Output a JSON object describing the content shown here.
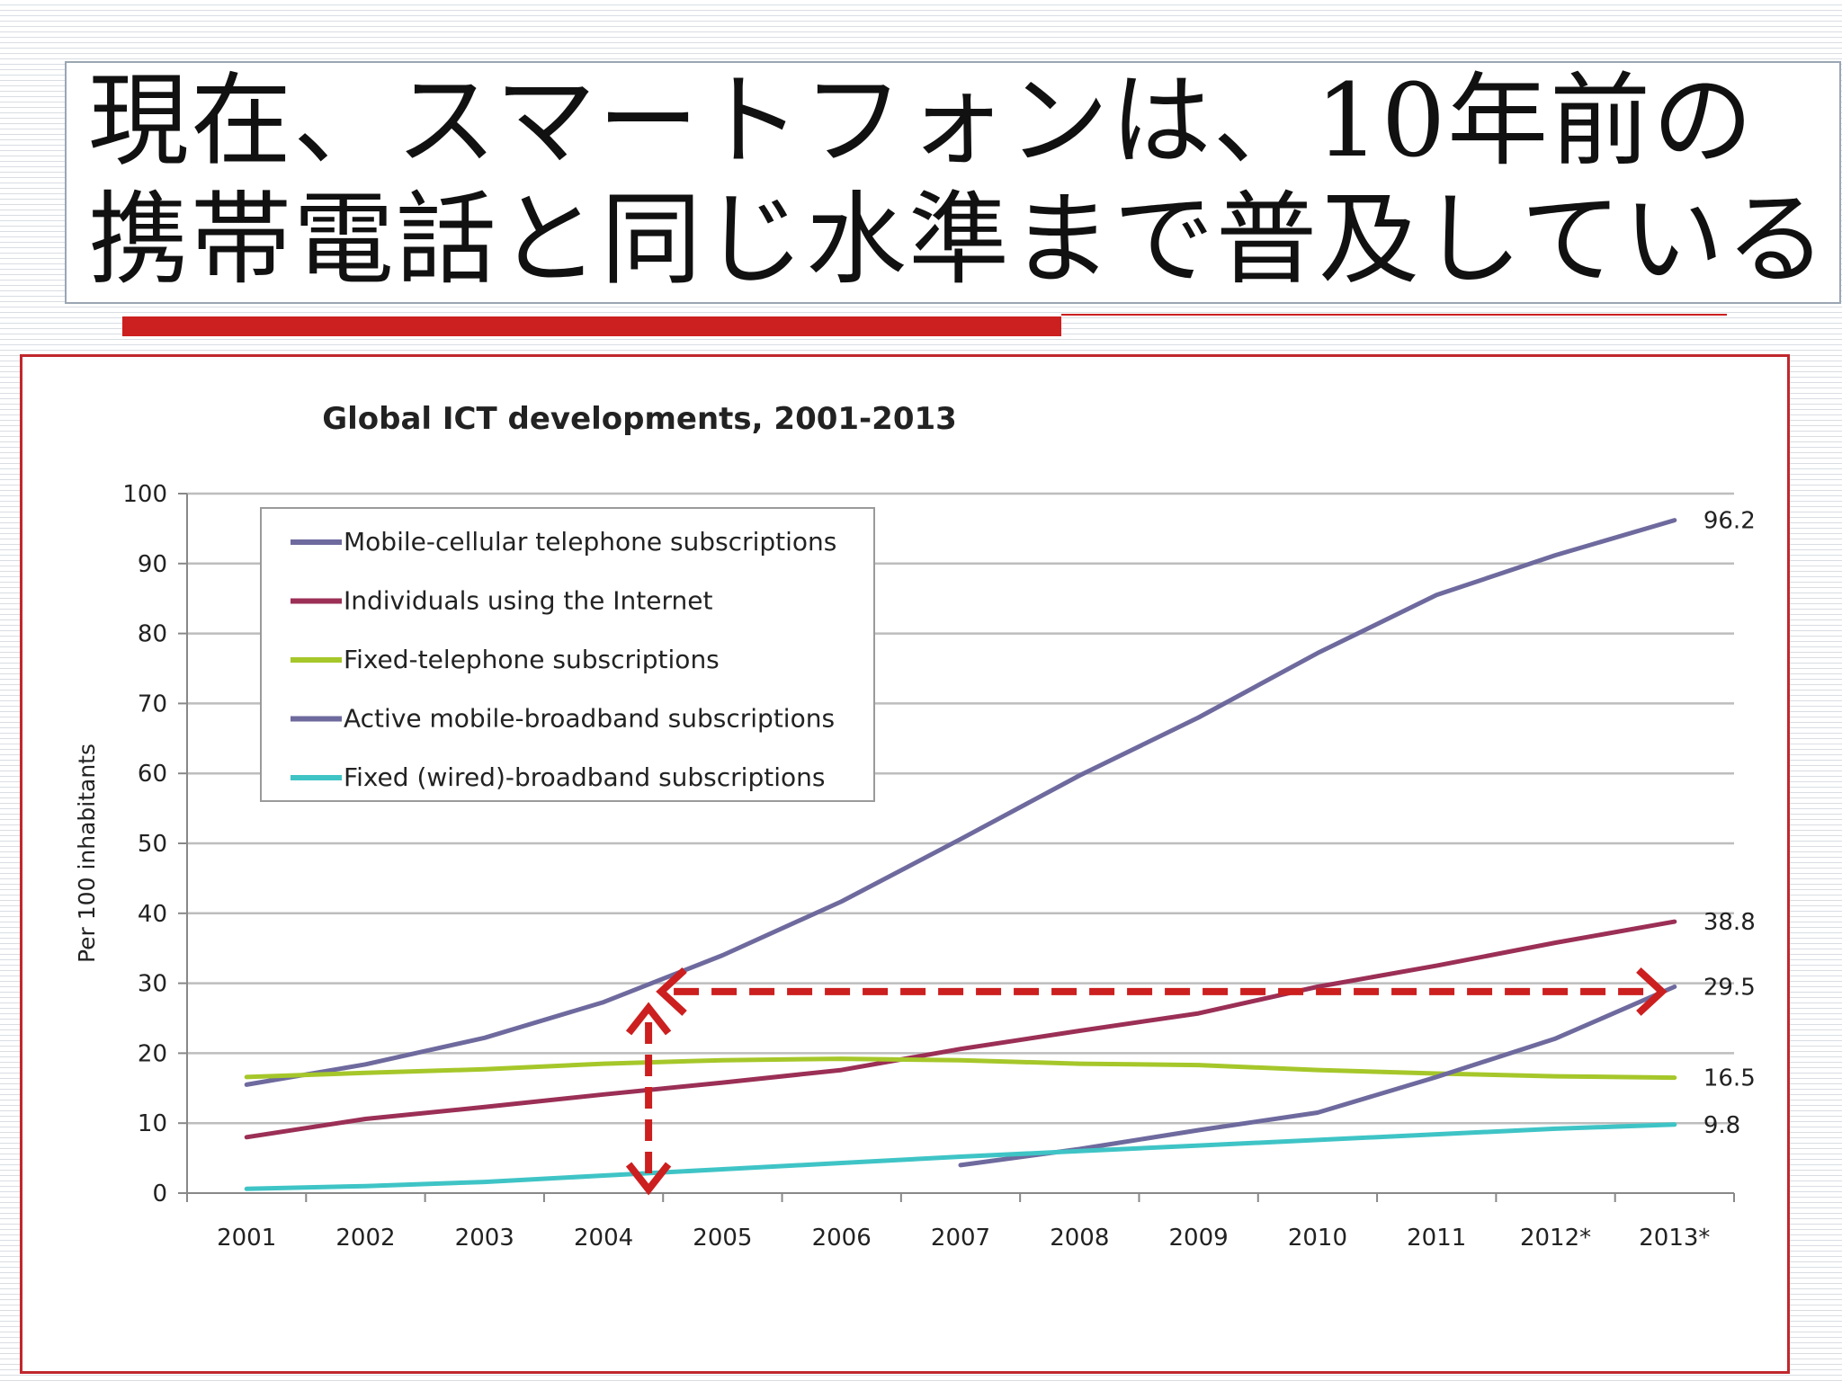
{
  "slide": {
    "title_line_1": "現在、スマートフォンは、10年前の",
    "title_line_2": "携帯電話と同じ水準まで普及している",
    "accent_color": "#cc1f1f"
  },
  "chart_data": {
    "type": "line",
    "title": "Global ICT developments, 2001-2013",
    "xlabel": "",
    "ylabel": "Per 100 inhabitants",
    "categories": [
      "2001",
      "2002",
      "2003",
      "2004",
      "2005",
      "2006",
      "2007",
      "2008",
      "2009",
      "2010",
      "2011",
      "2012*",
      "2013*"
    ],
    "ylim": [
      0,
      100
    ],
    "yticks": [
      0,
      10,
      20,
      30,
      40,
      50,
      60,
      70,
      80,
      90,
      100
    ],
    "grid": true,
    "legend_position": "top-left",
    "series": [
      {
        "name": "Mobile-cellular telephone subscriptions",
        "color": "#6e6a9e",
        "end_label": "96.2",
        "values": [
          15.5,
          18.4,
          22.2,
          27.3,
          34.0,
          41.7,
          50.6,
          59.7,
          68.0,
          77.2,
          85.5,
          91.2,
          96.2
        ]
      },
      {
        "name": "Individuals using the Internet",
        "color": "#9b2f55",
        "end_label": "38.8",
        "values": [
          8.0,
          10.6,
          12.3,
          14.1,
          15.8,
          17.6,
          20.6,
          23.2,
          25.7,
          29.5,
          32.5,
          35.8,
          38.8
        ]
      },
      {
        "name": "Fixed-telephone subscriptions",
        "color": "#a6c72a",
        "end_label": "16.5",
        "values": [
          16.6,
          17.2,
          17.7,
          18.5,
          19.0,
          19.2,
          19.0,
          18.5,
          18.3,
          17.6,
          17.1,
          16.7,
          16.5
        ]
      },
      {
        "name": "Active mobile-broadband subscriptions",
        "color": "#6e6a9e",
        "end_label": "29.5",
        "values": [
          null,
          null,
          null,
          null,
          null,
          null,
          4.0,
          6.3,
          9.0,
          11.5,
          16.6,
          22.1,
          29.5
        ]
      },
      {
        "name": "Fixed (wired)-broadband subscriptions",
        "color": "#3fc4c6",
        "end_label": "9.8",
        "values": [
          0.6,
          1.0,
          1.6,
          2.5,
          3.4,
          4.3,
          5.2,
          6.0,
          6.8,
          7.6,
          8.4,
          9.2,
          9.8
        ]
      }
    ],
    "annotations": {
      "color": "#cc1f1f",
      "vertical_arrow": {
        "x": "2004",
        "from": 0,
        "to": 28.8
      },
      "horizontal_arrow": {
        "y": 28.8,
        "from": "2004",
        "to": "2013*"
      }
    }
  }
}
